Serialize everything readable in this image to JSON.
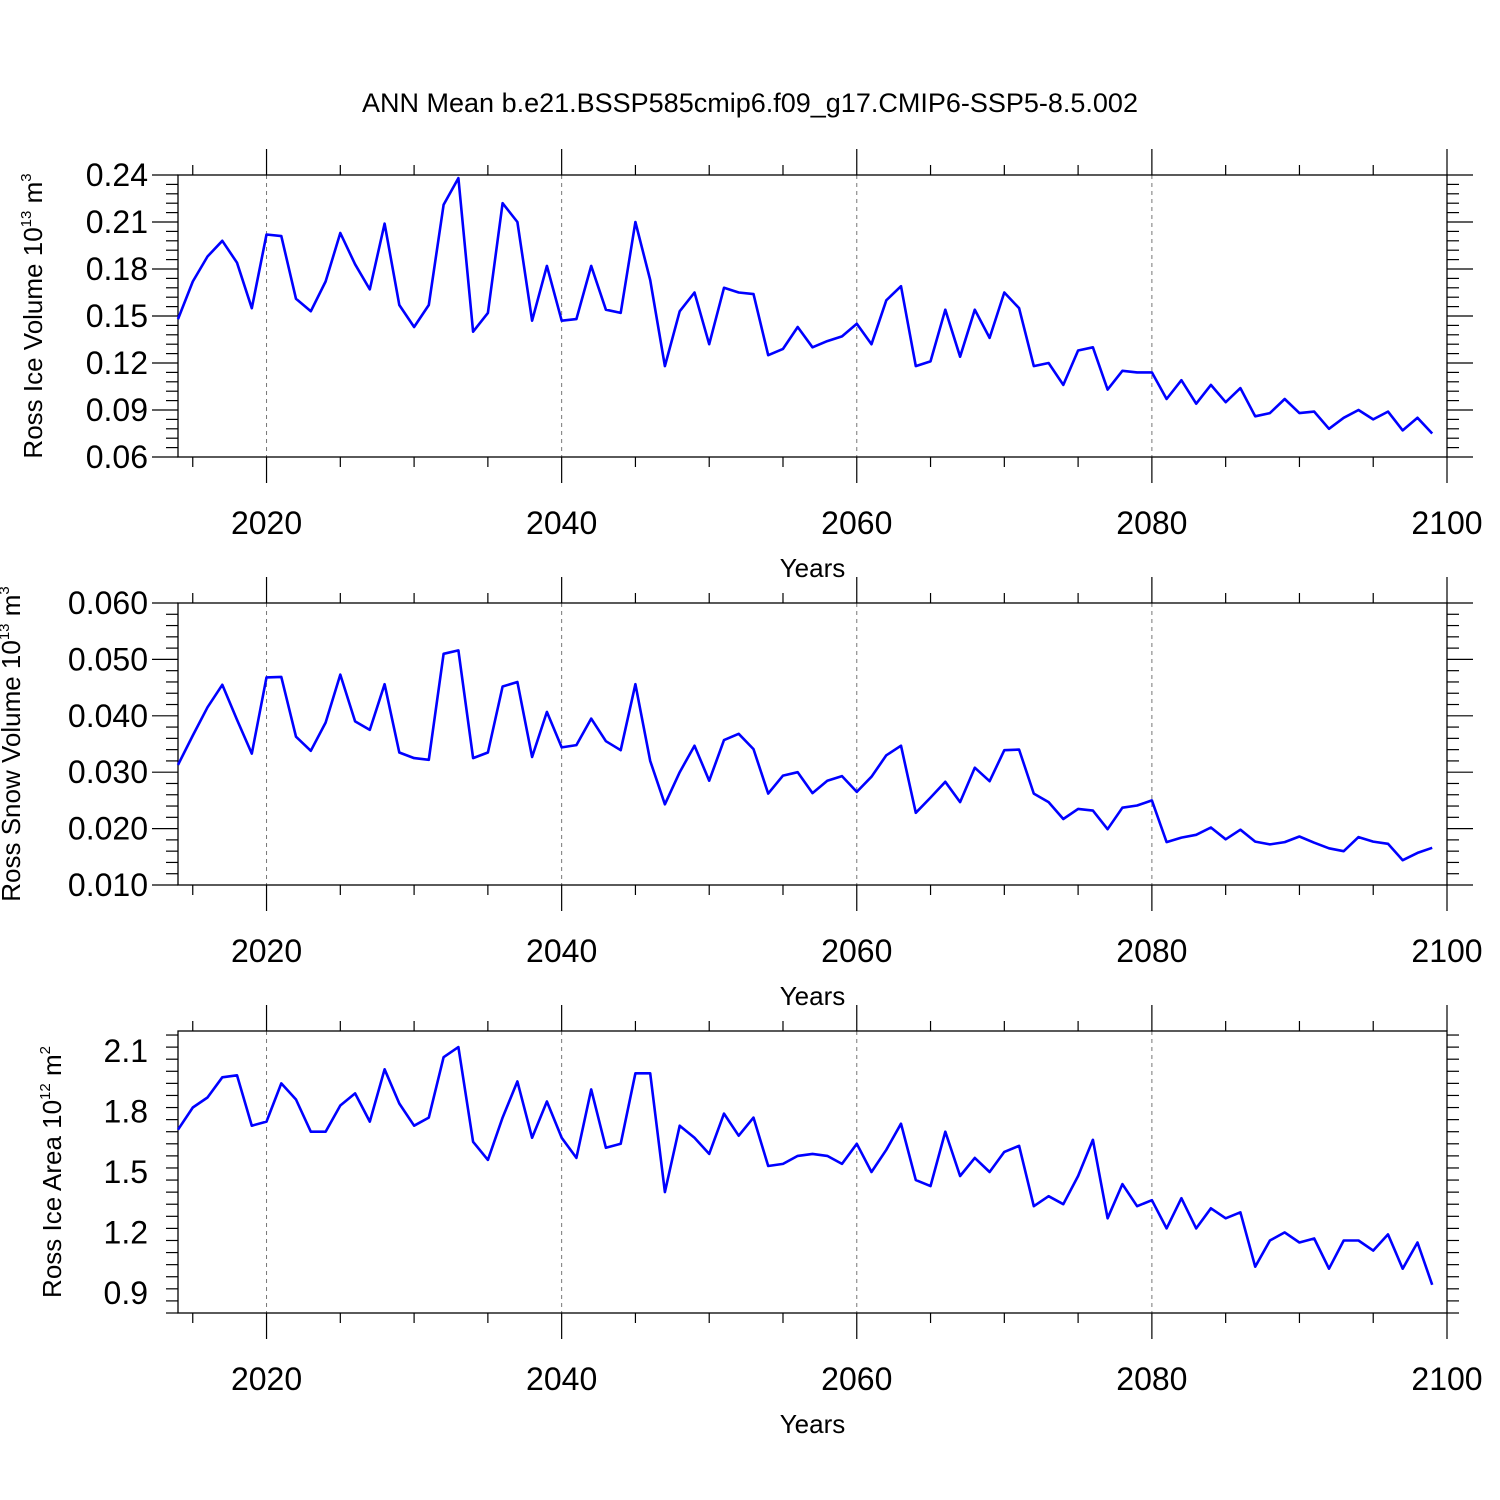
{
  "figure": {
    "title": "ANN Mean b.e21.BSSP585cmip6.f09_g17.CMIP6-SSP5-8.5.002"
  },
  "chart_data": [
    {
      "type": "line",
      "xlabel": "Years",
      "ylabel_main": "Ross Ice Volume 10",
      "ylabel_exp": "13",
      "ylabel_unit": " m",
      "ylabel_unit_exp": "3",
      "xlim": [
        2014,
        2100
      ],
      "ylim": [
        0.06,
        0.24
      ],
      "xticks": [
        2020,
        2040,
        2060,
        2080,
        2100
      ],
      "yticks": [
        "0.06",
        "0.09",
        "0.12",
        "0.15",
        "0.18",
        "0.21",
        "0.24"
      ],
      "grid": "vertical dashed at major x ticks",
      "color": "#0000ff",
      "x_start": 2014,
      "values": [
        0.148,
        0.172,
        0.188,
        0.198,
        0.184,
        0.155,
        0.202,
        0.201,
        0.161,
        0.153,
        0.172,
        0.203,
        0.183,
        0.167,
        0.209,
        0.157,
        0.143,
        0.157,
        0.221,
        0.238,
        0.14,
        0.152,
        0.222,
        0.21,
        0.147,
        0.182,
        0.147,
        0.148,
        0.182,
        0.154,
        0.152,
        0.21,
        0.173,
        0.118,
        0.153,
        0.165,
        0.132,
        0.168,
        0.165,
        0.164,
        0.125,
        0.129,
        0.143,
        0.13,
        0.134,
        0.137,
        0.145,
        0.132,
        0.16,
        0.169,
        0.118,
        0.121,
        0.154,
        0.124,
        0.154,
        0.136,
        0.165,
        0.155,
        0.118,
        0.12,
        0.106,
        0.128,
        0.13,
        0.103,
        0.115,
        0.114,
        0.114,
        0.097,
        0.109,
        0.094,
        0.106,
        0.095,
        0.104,
        0.086,
        0.088,
        0.097,
        0.088,
        0.089,
        0.078,
        0.085,
        0.09,
        0.084,
        0.089,
        0.077,
        0.085,
        0.075
      ]
    },
    {
      "type": "line",
      "xlabel": "Years",
      "ylabel_main": "Ross Snow Volume 10",
      "ylabel_exp": "13",
      "ylabel_unit": " m",
      "ylabel_unit_exp": "3",
      "xlim": [
        2014,
        2100
      ],
      "ylim": [
        0.01,
        0.06
      ],
      "xticks": [
        2020,
        2040,
        2060,
        2080,
        2100
      ],
      "yticks": [
        "0.010",
        "0.020",
        "0.030",
        "0.040",
        "0.050",
        "0.060"
      ],
      "grid": "vertical dashed at major x ticks",
      "color": "#0000ff",
      "x_start": 2014,
      "values": [
        0.0313,
        0.0365,
        0.0415,
        0.0455,
        0.0393,
        0.0333,
        0.0468,
        0.0469,
        0.0363,
        0.0338,
        0.0388,
        0.0473,
        0.039,
        0.0375,
        0.0456,
        0.0335,
        0.0325,
        0.0322,
        0.051,
        0.0516,
        0.0325,
        0.0335,
        0.0452,
        0.046,
        0.0327,
        0.0407,
        0.0344,
        0.0348,
        0.0395,
        0.0355,
        0.0339,
        0.0456,
        0.032,
        0.0243,
        0.03,
        0.0347,
        0.0285,
        0.0357,
        0.0368,
        0.0341,
        0.0262,
        0.0294,
        0.03,
        0.0263,
        0.0285,
        0.0293,
        0.0265,
        0.0292,
        0.033,
        0.0347,
        0.0228,
        0.0255,
        0.0283,
        0.0247,
        0.0308,
        0.0284,
        0.0339,
        0.034,
        0.0262,
        0.0247,
        0.0217,
        0.0235,
        0.0232,
        0.0199,
        0.0237,
        0.0241,
        0.025,
        0.0176,
        0.0184,
        0.0189,
        0.0202,
        0.0181,
        0.0198,
        0.0177,
        0.0172,
        0.0176,
        0.0186,
        0.0175,
        0.0165,
        0.016,
        0.0185,
        0.0177,
        0.0173,
        0.0144,
        0.0157,
        0.0166
      ]
    },
    {
      "type": "line",
      "xlabel": "Years",
      "ylabel_main": "Ross Ice Area 10",
      "ylabel_exp": "12",
      "ylabel_unit": " m",
      "ylabel_unit_exp": "2",
      "xlim": [
        2014,
        2100
      ],
      "ylim": [
        0.8,
        2.2
      ],
      "xticks": [
        2020,
        2040,
        2060,
        2080,
        2100
      ],
      "yticks": [
        "0.9",
        "1.2",
        "1.5",
        "1.8",
        "2.1"
      ],
      "grid": "vertical dashed at major x ticks",
      "color": "#0000ff",
      "x_start": 2014,
      "values": [
        1.71,
        1.82,
        1.87,
        1.97,
        1.98,
        1.73,
        1.75,
        1.94,
        1.86,
        1.7,
        1.7,
        1.83,
        1.89,
        1.75,
        2.01,
        1.84,
        1.73,
        1.77,
        2.07,
        2.12,
        1.65,
        1.56,
        1.77,
        1.95,
        1.67,
        1.85,
        1.67,
        1.57,
        1.91,
        1.62,
        1.64,
        1.99,
        1.99,
        1.4,
        1.73,
        1.67,
        1.59,
        1.79,
        1.68,
        1.77,
        1.53,
        1.54,
        1.58,
        1.59,
        1.58,
        1.54,
        1.64,
        1.5,
        1.61,
        1.74,
        1.46,
        1.43,
        1.7,
        1.48,
        1.57,
        1.5,
        1.6,
        1.63,
        1.33,
        1.38,
        1.34,
        1.48,
        1.66,
        1.27,
        1.44,
        1.33,
        1.36,
        1.22,
        1.37,
        1.22,
        1.32,
        1.27,
        1.3,
        1.03,
        1.16,
        1.2,
        1.15,
        1.17,
        1.02,
        1.16,
        1.16,
        1.11,
        1.19,
        1.02,
        1.15,
        0.94
      ]
    }
  ]
}
